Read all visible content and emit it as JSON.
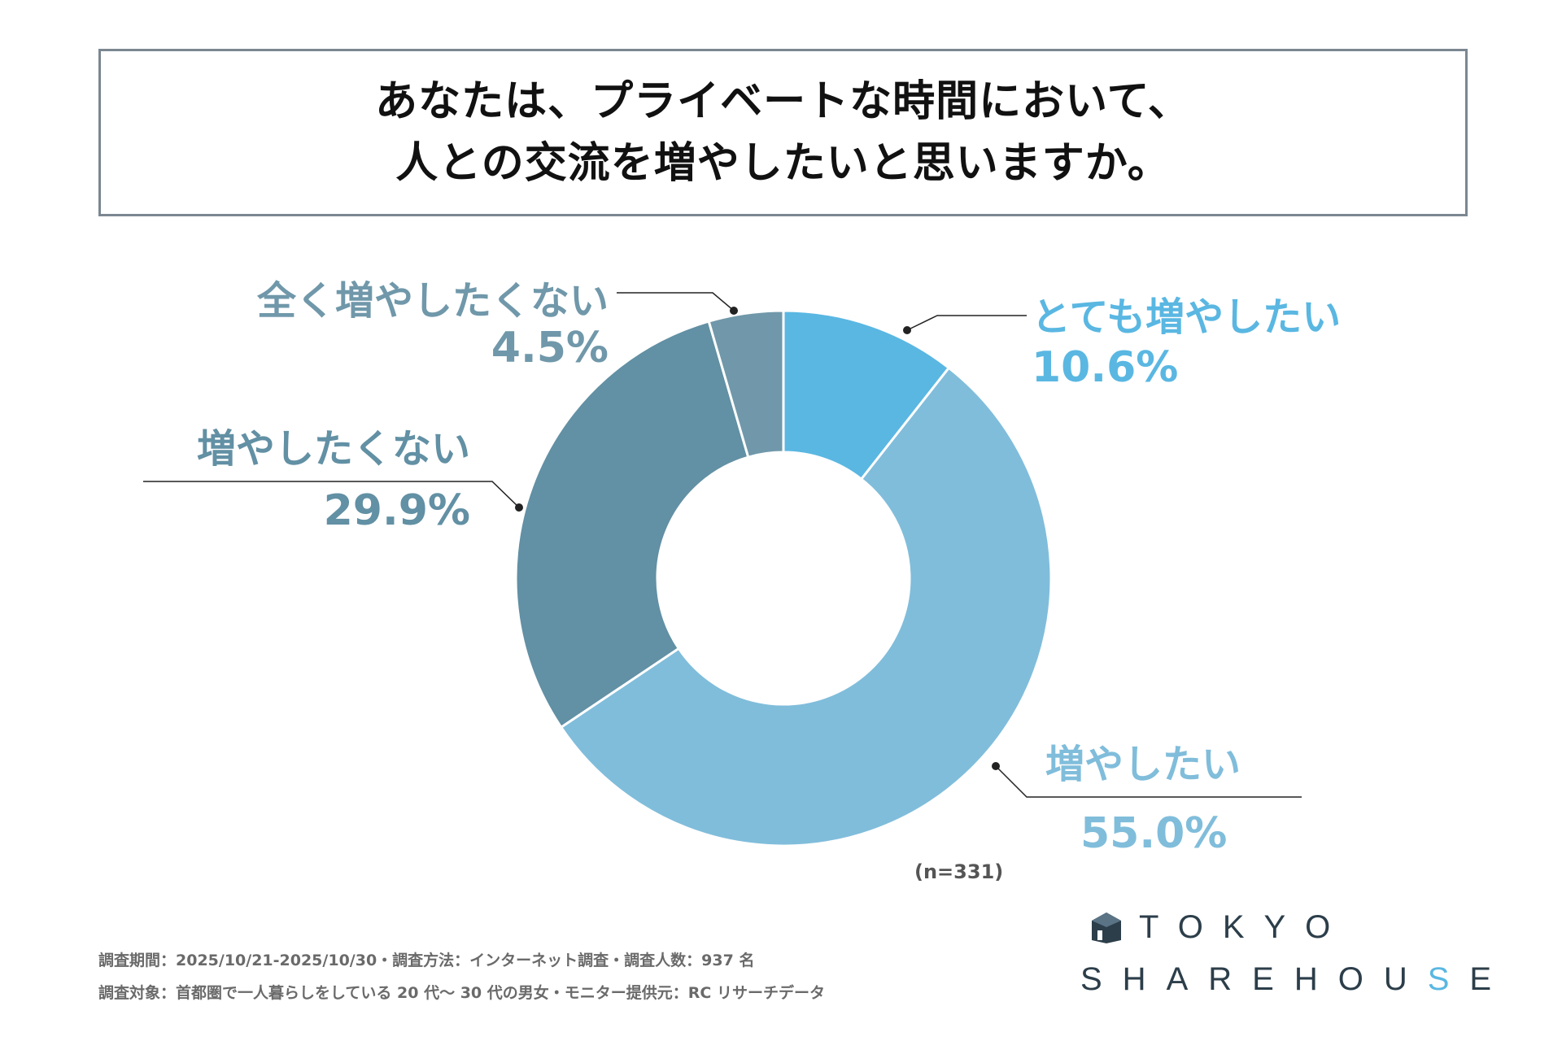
{
  "title": {
    "line1": "あなたは、プライベートな時間において、",
    "line2": "人との交流を増やしたいと思いますか。"
  },
  "chart_data": {
    "type": "pie",
    "variant": "donut",
    "title": "あなたは、プライベートな時間において、人との交流を増やしたいと思いますか。",
    "categories": [
      "とても増やしたい",
      "増やしたい",
      "増やしたくない",
      "全く増やしたくない"
    ],
    "values": [
      10.6,
      55.0,
      29.9,
      4.5
    ],
    "value_labels": [
      "10.6%",
      "55.0%",
      "29.9%",
      "4.5%"
    ],
    "colors": [
      "#5ab7e2",
      "#80bddb",
      "#6290a4",
      "#7098aa"
    ],
    "label_colors": [
      "#5ab7e2",
      "#80bddb",
      "#6290a4",
      "#7098aa"
    ],
    "sample": "(n=331)"
  },
  "footer": {
    "line1": "調査期間：2025/10/21-2025/10/30・調査方法：インターネット調査・調査人数：937 名",
    "line2": "調査対象：首都圏で一人暮らしをしている 20 代〜 30 代の男女・モニター提供元：RC リサーチデータ"
  },
  "logo": {
    "line1": "TOKYO",
    "line2a": "SHAREHOU",
    "line2b": "S",
    "line2c": "E"
  }
}
